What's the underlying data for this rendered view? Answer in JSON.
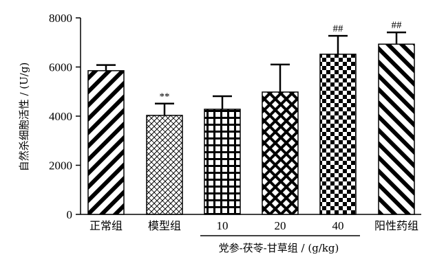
{
  "chart_data": {
    "type": "bar",
    "ylabel": "自然杀细胞活性 / (U/g)",
    "xlabel": "党参-茯苓-甘草组 / (g/kg)",
    "ylim": [
      0,
      8000
    ],
    "yticks": [
      0,
      2000,
      4000,
      6000,
      8000
    ],
    "categories": [
      "正常组",
      "模型组",
      "10",
      "20",
      "40",
      "阳性药组"
    ],
    "values": [
      5850,
      4030,
      4280,
      4980,
      6520,
      6930
    ],
    "errors": [
      230,
      480,
      530,
      1120,
      750,
      480
    ],
    "annotations": [
      "",
      "**",
      "",
      "",
      "##",
      "##"
    ],
    "patterns": [
      "diagonal-down-wide",
      "brick-fine",
      "grid",
      "crosshatch",
      "checker",
      "diagonal-up-wide"
    ],
    "group_bracket": {
      "from": 2,
      "to": 4
    },
    "colors": {
      "stroke": "#000000",
      "fill": "#ffffff"
    }
  }
}
